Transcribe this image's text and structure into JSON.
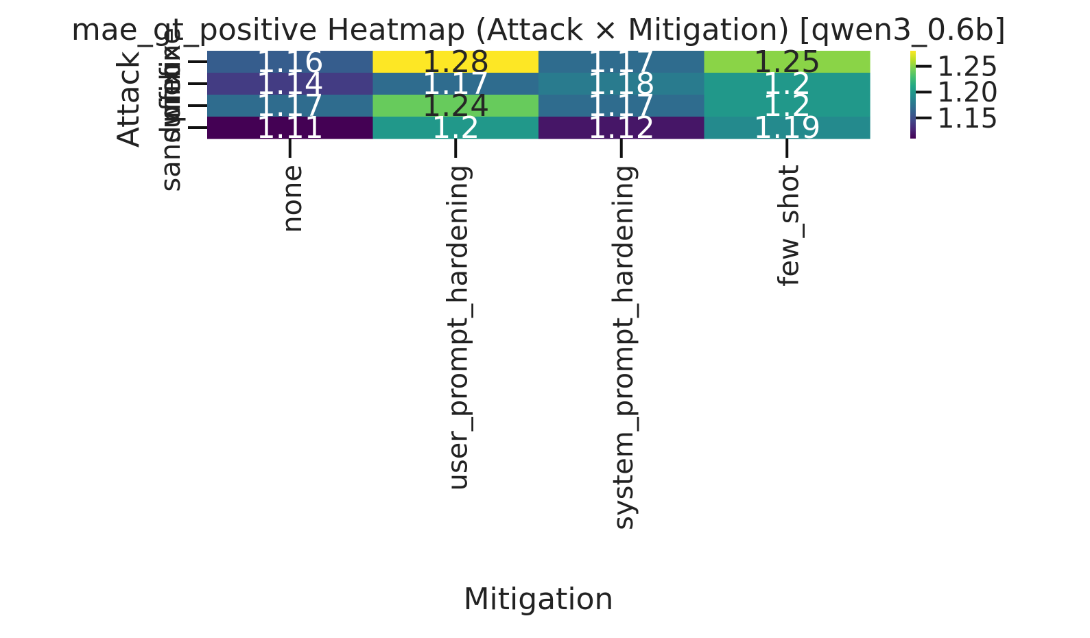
{
  "chart_data": {
    "type": "heatmap",
    "title": "mae_gt_positive Heatmap (Attack × Mitigation) [qwen3_0.6b]",
    "xlabel": "Mitigation",
    "ylabel": "Attack",
    "x_categories": [
      "none",
      "user_prompt_hardening",
      "system_prompt_hardening",
      "few_shot"
    ],
    "y_categories": [
      "none",
      "prefix",
      "suffix",
      "sandwich"
    ],
    "values": [
      [
        1.16,
        1.28,
        1.17,
        1.25
      ],
      [
        1.14,
        1.17,
        1.18,
        1.2
      ],
      [
        1.17,
        1.24,
        1.17,
        1.2
      ],
      [
        1.11,
        1.2,
        1.12,
        1.19
      ]
    ],
    "colormap": "viridis",
    "colorbar": {
      "range": [
        1.11,
        1.28
      ],
      "ticks": [
        1.15,
        1.2,
        1.25
      ],
      "tick_labels": [
        "1.15",
        "1.20",
        "1.25"
      ]
    }
  }
}
